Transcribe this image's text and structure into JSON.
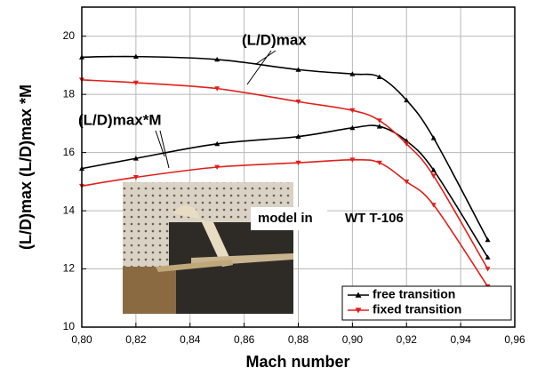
{
  "chart_data": {
    "type": "line",
    "x_label": "Mach number",
    "y_label": "(L/D)max  (L/D)max *M",
    "x": [
      0.8,
      0.82,
      0.85,
      0.88,
      0.9,
      0.91,
      0.92,
      0.93,
      0.95
    ],
    "xlim": [
      0.8,
      0.96
    ],
    "xticks": [
      {
        "value": 0.8,
        "label": "0,80"
      },
      {
        "value": 0.82,
        "label": "0,82"
      },
      {
        "value": 0.84,
        "label": "0,84"
      },
      {
        "value": 0.86,
        "label": "0,86"
      },
      {
        "value": 0.88,
        "label": "0,88"
      },
      {
        "value": 0.9,
        "label": "0,90"
      },
      {
        "value": 0.92,
        "label": "0,92"
      },
      {
        "value": 0.94,
        "label": "0,94"
      },
      {
        "value": 0.96,
        "label": "0,96"
      }
    ],
    "ylim": [
      10,
      21
    ],
    "yticks": [
      10,
      12,
      14,
      16,
      18,
      20
    ],
    "grid": true,
    "legend": "lower right",
    "series": [
      {
        "name": "free transition",
        "color": "#000000",
        "marker": "triangle-up",
        "lines": [
          {
            "values": [
              19.28,
              19.3,
              19.2,
              18.85,
              18.7,
              18.6,
              17.8,
              16.5,
              13.0
            ]
          },
          {
            "values": [
              15.45,
              15.8,
              16.3,
              16.55,
              16.85,
              16.9,
              16.4,
              15.4,
              12.4
            ]
          }
        ]
      },
      {
        "name": "fixed transition",
        "color": "#e0201b",
        "marker": "triangle-down",
        "lines": [
          {
            "values": [
              18.5,
              18.4,
              18.2,
              17.75,
              17.45,
              17.1,
              16.3,
              15.2,
              12.0
            ]
          },
          {
            "values": [
              14.85,
              15.15,
              15.5,
              15.65,
              15.75,
              15.65,
              15.0,
              14.2,
              11.4
            ]
          }
        ]
      }
    ],
    "annotations": [
      {
        "text": "(L/D)max"
      },
      {
        "text": "(L/D)max*M"
      }
    ],
    "inset_labels": [
      "model in",
      "WT T-106"
    ]
  }
}
